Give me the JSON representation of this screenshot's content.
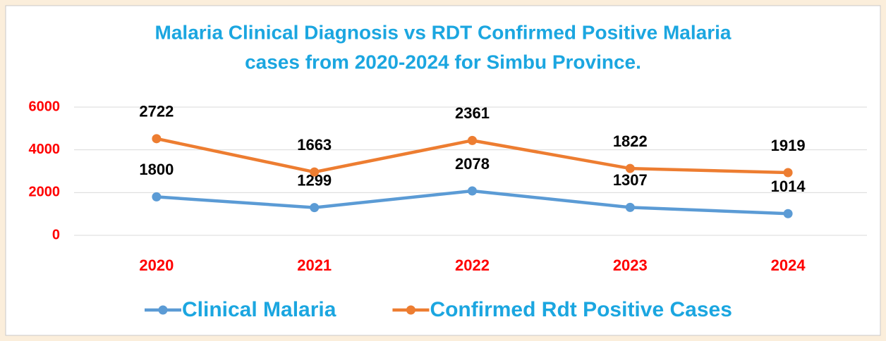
{
  "chart_data": {
    "type": "stacked-line",
    "title": [
      "Malaria Clinical Diagnosis vs RDT Confirmed Positive Malaria",
      "cases from 2020-2024 for Simbu Province."
    ],
    "categories": [
      "2020",
      "2021",
      "2022",
      "2023",
      "2024"
    ],
    "series": [
      {
        "name": "Clinical Malaria",
        "color": "#5b9bd5",
        "values": [
          1800,
          1299,
          2078,
          1307,
          1014
        ]
      },
      {
        "name": "Confirmed Rdt Positive Cases",
        "color": "#ed7d31",
        "values": [
          2722,
          1663,
          2361,
          1822,
          1919
        ]
      }
    ],
    "ylim": [
      0,
      6000
    ],
    "yticks": [
      0,
      2000,
      4000,
      6000
    ],
    "grid": true,
    "legend": "bottom"
  }
}
